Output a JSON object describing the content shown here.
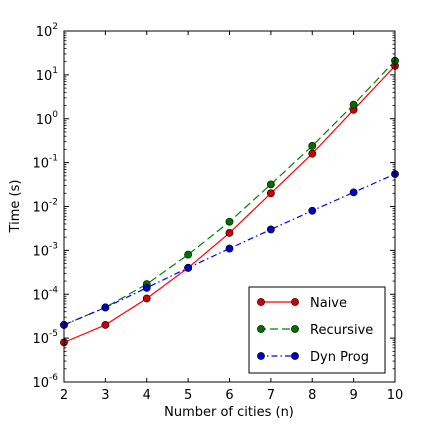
{
  "chart_data": {
    "type": "line",
    "title": "",
    "xlabel": "Number of cities (n)",
    "ylabel": "Time (s)",
    "xscale": "linear",
    "yscale": "log",
    "xlim": [
      2,
      10
    ],
    "ylim": [
      1e-06,
      100
    ],
    "x": [
      2,
      3,
      4,
      5,
      6,
      7,
      8,
      9,
      10
    ],
    "xticks": [
      "2",
      "3",
      "4",
      "5",
      "6",
      "7",
      "8",
      "9",
      "10"
    ],
    "yticks": [
      {
        "base": "10",
        "exp": "-6"
      },
      {
        "base": "10",
        "exp": "-5"
      },
      {
        "base": "10",
        "exp": "-4"
      },
      {
        "base": "10",
        "exp": "-3"
      },
      {
        "base": "10",
        "exp": "-2"
      },
      {
        "base": "10",
        "exp": "-1"
      },
      {
        "base": "10",
        "exp": "0"
      },
      {
        "base": "10",
        "exp": "1"
      },
      {
        "base": "10",
        "exp": "2"
      }
    ],
    "grid": false,
    "legend_position": "bottom-right",
    "series": [
      {
        "name": "Naive",
        "color": "#ff0000",
        "marker_color": "#cc0000",
        "line_style": "solid",
        "values": [
          8e-06,
          2e-05,
          8e-05,
          0.0004,
          0.0025,
          0.02,
          0.16,
          1.6,
          16
        ]
      },
      {
        "name": "Recursive",
        "color": "#008000",
        "marker_color": "#007000",
        "line_style": "dashed",
        "values": [
          2e-05,
          5e-05,
          0.00017,
          0.0008,
          0.0045,
          0.032,
          0.24,
          2.1,
          21
        ]
      },
      {
        "name": "Dyn Prog",
        "color": "#0000ff",
        "marker_color": "#0000cc",
        "line_style": "dashdot",
        "values": [
          2e-05,
          5e-05,
          0.00014,
          0.0004,
          0.0011,
          0.003,
          0.008,
          0.021,
          0.055
        ]
      }
    ]
  }
}
